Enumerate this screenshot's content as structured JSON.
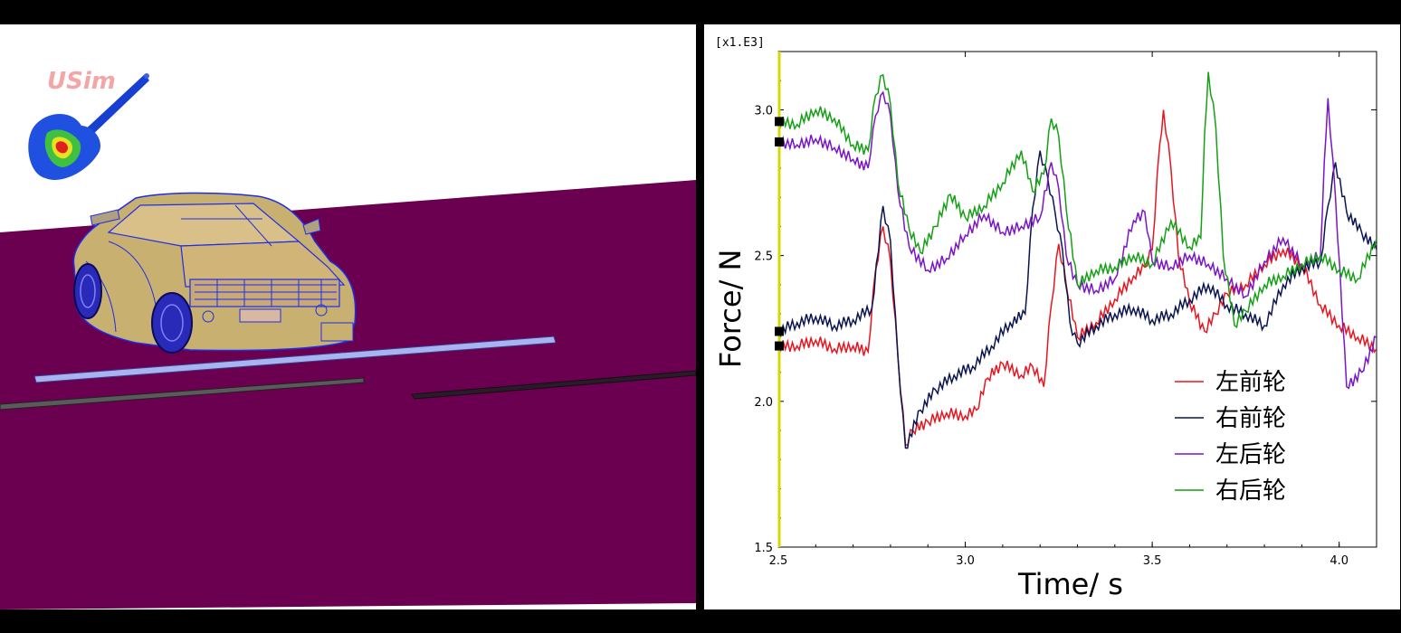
{
  "scene": {
    "logo_text": "USim"
  },
  "colors": {
    "road": "#6b0050",
    "car_body": "#c8b070",
    "wireframe": "#1e2ee8",
    "left_front": "#e8141e",
    "right_front": "#0a1450",
    "left_rear": "#7a14c8",
    "right_rear": "#14a014",
    "cursor": "#d8d800"
  },
  "chart_data": {
    "type": "line",
    "title": "",
    "xlabel": "Time/ s",
    "ylabel": "Force/ N",
    "scale_label": "[x1.E3]",
    "xlim": [
      2.5,
      4.1
    ],
    "ylim": [
      1.5,
      3.2
    ],
    "xticks": [
      "2.5",
      "3.0",
      "3.5",
      "4.0"
    ],
    "yticks": [
      "1.5",
      "2.0",
      "2.5",
      "3.0"
    ],
    "legend_position": "lower-right",
    "grid": false,
    "cursor_x": 2.5,
    "series": [
      {
        "name": "左前轮",
        "color_key": "left_front",
        "points": [
          [
            2.5,
            2.19
          ],
          [
            2.55,
            2.19
          ],
          [
            2.6,
            2.21
          ],
          [
            2.65,
            2.18
          ],
          [
            2.7,
            2.19
          ],
          [
            2.74,
            2.17
          ],
          [
            2.76,
            2.45
          ],
          [
            2.78,
            2.6
          ],
          [
            2.8,
            2.48
          ],
          [
            2.82,
            2.15
          ],
          [
            2.84,
            1.85
          ],
          [
            2.86,
            1.9
          ],
          [
            2.9,
            1.93
          ],
          [
            2.95,
            1.96
          ],
          [
            3.0,
            1.95
          ],
          [
            3.03,
            1.97
          ],
          [
            3.06,
            2.08
          ],
          [
            3.1,
            2.13
          ],
          [
            3.15,
            2.09
          ],
          [
            3.18,
            2.12
          ],
          [
            3.21,
            2.05
          ],
          [
            3.23,
            2.33
          ],
          [
            3.25,
            2.54
          ],
          [
            3.27,
            2.4
          ],
          [
            3.3,
            2.22
          ],
          [
            3.35,
            2.27
          ],
          [
            3.4,
            2.35
          ],
          [
            3.45,
            2.43
          ],
          [
            3.48,
            2.46
          ],
          [
            3.5,
            2.52
          ],
          [
            3.52,
            2.88
          ],
          [
            3.53,
            3.0
          ],
          [
            3.55,
            2.8
          ],
          [
            3.57,
            2.5
          ],
          [
            3.6,
            2.34
          ],
          [
            3.64,
            2.24
          ],
          [
            3.67,
            2.3
          ],
          [
            3.7,
            2.37
          ],
          [
            3.75,
            2.4
          ],
          [
            3.8,
            2.47
          ],
          [
            3.85,
            2.52
          ],
          [
            3.9,
            2.47
          ],
          [
            3.95,
            2.33
          ],
          [
            4.0,
            2.26
          ],
          [
            4.05,
            2.22
          ],
          [
            4.1,
            2.18
          ]
        ]
      },
      {
        "name": "右前轮",
        "color_key": "right_front",
        "points": [
          [
            2.5,
            2.24
          ],
          [
            2.55,
            2.27
          ],
          [
            2.6,
            2.29
          ],
          [
            2.65,
            2.26
          ],
          [
            2.7,
            2.28
          ],
          [
            2.75,
            2.32
          ],
          [
            2.78,
            2.67
          ],
          [
            2.8,
            2.55
          ],
          [
            2.82,
            2.15
          ],
          [
            2.84,
            1.84
          ],
          [
            2.88,
            1.97
          ],
          [
            2.92,
            2.04
          ],
          [
            2.97,
            2.09
          ],
          [
            3.02,
            2.12
          ],
          [
            3.07,
            2.19
          ],
          [
            3.12,
            2.27
          ],
          [
            3.16,
            2.3
          ],
          [
            3.18,
            2.66
          ],
          [
            3.2,
            2.86
          ],
          [
            3.22,
            2.77
          ],
          [
            3.24,
            2.65
          ],
          [
            3.26,
            2.52
          ],
          [
            3.28,
            2.27
          ],
          [
            3.3,
            2.2
          ],
          [
            3.35,
            2.26
          ],
          [
            3.4,
            2.3
          ],
          [
            3.45,
            2.32
          ],
          [
            3.5,
            2.28
          ],
          [
            3.55,
            2.3
          ],
          [
            3.6,
            2.35
          ],
          [
            3.65,
            2.4
          ],
          [
            3.7,
            2.33
          ],
          [
            3.75,
            2.3
          ],
          [
            3.8,
            2.26
          ],
          [
            3.85,
            2.4
          ],
          [
            3.9,
            2.46
          ],
          [
            3.95,
            2.48
          ],
          [
            3.97,
            2.67
          ],
          [
            3.99,
            2.82
          ],
          [
            4.02,
            2.65
          ],
          [
            4.06,
            2.58
          ],
          [
            4.1,
            2.52
          ]
        ]
      },
      {
        "name": "左后轮",
        "color_key": "left_rear",
        "points": [
          [
            2.5,
            2.89
          ],
          [
            2.55,
            2.88
          ],
          [
            2.6,
            2.9
          ],
          [
            2.65,
            2.87
          ],
          [
            2.7,
            2.83
          ],
          [
            2.74,
            2.8
          ],
          [
            2.76,
            2.98
          ],
          [
            2.78,
            3.06
          ],
          [
            2.8,
            2.98
          ],
          [
            2.82,
            2.72
          ],
          [
            2.85,
            2.53
          ],
          [
            2.9,
            2.45
          ],
          [
            2.95,
            2.49
          ],
          [
            3.0,
            2.57
          ],
          [
            3.05,
            2.64
          ],
          [
            3.1,
            2.58
          ],
          [
            3.15,
            2.6
          ],
          [
            3.2,
            2.63
          ],
          [
            3.23,
            2.82
          ],
          [
            3.25,
            2.73
          ],
          [
            3.27,
            2.5
          ],
          [
            3.3,
            2.4
          ],
          [
            3.35,
            2.38
          ],
          [
            3.4,
            2.42
          ],
          [
            3.45,
            2.62
          ],
          [
            3.48,
            2.65
          ],
          [
            3.5,
            2.48
          ],
          [
            3.55,
            2.46
          ],
          [
            3.6,
            2.5
          ],
          [
            3.65,
            2.47
          ],
          [
            3.7,
            2.42
          ],
          [
            3.75,
            2.36
          ],
          [
            3.8,
            2.48
          ],
          [
            3.85,
            2.56
          ],
          [
            3.9,
            2.47
          ],
          [
            3.95,
            2.5
          ],
          [
            3.96,
            2.82
          ],
          [
            3.97,
            3.04
          ],
          [
            3.99,
            2.7
          ],
          [
            4.02,
            2.05
          ],
          [
            4.06,
            2.1
          ],
          [
            4.1,
            2.22
          ]
        ]
      },
      {
        "name": "右后轮",
        "color_key": "right_rear",
        "points": [
          [
            2.5,
            2.96
          ],
          [
            2.55,
            2.95
          ],
          [
            2.6,
            3.0
          ],
          [
            2.65,
            2.97
          ],
          [
            2.7,
            2.88
          ],
          [
            2.74,
            2.86
          ],
          [
            2.76,
            3.05
          ],
          [
            2.78,
            3.12
          ],
          [
            2.8,
            3.02
          ],
          [
            2.82,
            2.75
          ],
          [
            2.85,
            2.59
          ],
          [
            2.88,
            2.51
          ],
          [
            2.92,
            2.6
          ],
          [
            2.96,
            2.71
          ],
          [
            3.0,
            2.63
          ],
          [
            3.05,
            2.67
          ],
          [
            3.1,
            2.75
          ],
          [
            3.15,
            2.86
          ],
          [
            3.18,
            2.72
          ],
          [
            3.21,
            2.78
          ],
          [
            3.23,
            2.97
          ],
          [
            3.25,
            2.91
          ],
          [
            3.27,
            2.66
          ],
          [
            3.3,
            2.4
          ],
          [
            3.35,
            2.45
          ],
          [
            3.4,
            2.46
          ],
          [
            3.45,
            2.5
          ],
          [
            3.5,
            2.47
          ],
          [
            3.55,
            2.62
          ],
          [
            3.6,
            2.53
          ],
          [
            3.63,
            2.56
          ],
          [
            3.64,
            2.92
          ],
          [
            3.65,
            3.13
          ],
          [
            3.67,
            2.94
          ],
          [
            3.69,
            2.5
          ],
          [
            3.72,
            2.26
          ],
          [
            3.75,
            2.31
          ],
          [
            3.8,
            2.4
          ],
          [
            3.85,
            2.43
          ],
          [
            3.9,
            2.47
          ],
          [
            3.95,
            2.5
          ],
          [
            4.0,
            2.45
          ],
          [
            4.05,
            2.42
          ],
          [
            4.1,
            2.56
          ]
        ]
      }
    ]
  }
}
